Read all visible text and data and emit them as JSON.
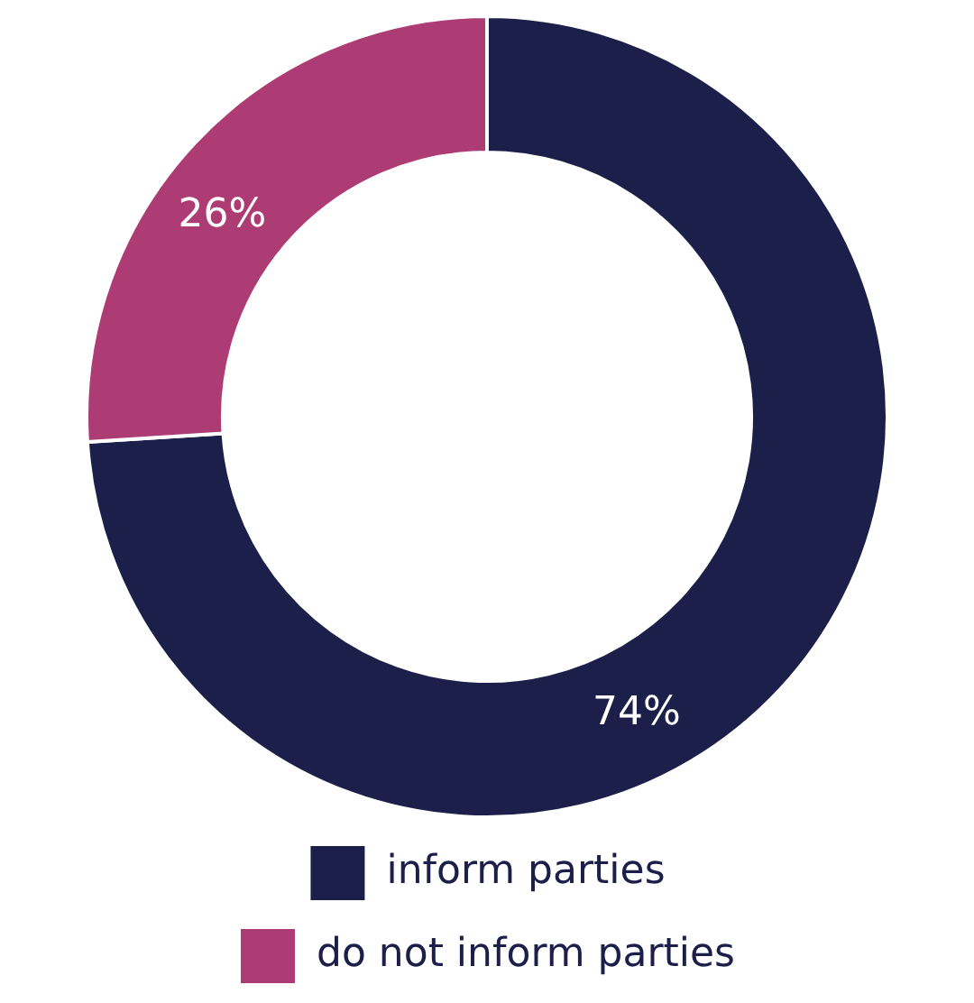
{
  "chart_data": {
    "type": "donut",
    "categories": [
      "inform parties",
      "do not inform parties"
    ],
    "values": [
      74,
      26
    ],
    "colors": [
      "#1b1f4a",
      "#ad3c75"
    ],
    "value_labels": [
      "74%",
      "26%"
    ],
    "legend": "bottom"
  }
}
